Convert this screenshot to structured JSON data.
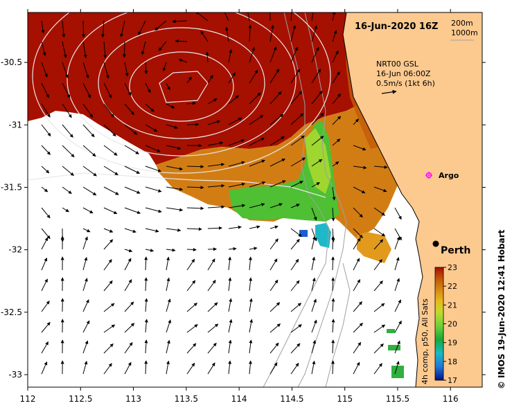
{
  "header": {
    "date": "16-Jun-2020 16Z",
    "contour_1": "200m",
    "contour_2": "1000m"
  },
  "current_legend": {
    "line1": "NRT00 GSL",
    "line2": "16-Jun 06:00Z",
    "line3": "0.5m/s (1kt 6h)"
  },
  "places": {
    "argo": "Argo",
    "perth": "Perth"
  },
  "axes": {
    "x_ticks": [
      "112",
      "112.5",
      "113",
      "113.5",
      "114",
      "114.5",
      "115",
      "115.5",
      "116"
    ],
    "y_ticks": [
      "-30.5",
      "-31",
      "-31.5",
      "-32",
      "-32.5",
      "-33"
    ],
    "x_range": [
      112,
      116.3
    ],
    "y_range": [
      -30.1,
      -33.1
    ]
  },
  "colorbar": {
    "label": "4h comp, p50, All Sats",
    "ticks": [
      "23",
      "22",
      "21",
      "20",
      "19",
      "18",
      "17"
    ],
    "min": 17,
    "max": 23,
    "colors": [
      "#05137f",
      "#1f77d6",
      "#18b9c6",
      "#19a839",
      "#6cd13a",
      "#c0da2e",
      "#e8b81e",
      "#d68913",
      "#c15609",
      "#a90d00"
    ]
  },
  "credit": "© IMOS 19-Jun-2020 12:41 Hobart",
  "colors": {
    "land": "#fcc98f",
    "warm": "#a51000",
    "orange": "#d07a12",
    "green": "#4fbf34",
    "arrow": "#000000",
    "contour": "#a0a0a0"
  }
}
